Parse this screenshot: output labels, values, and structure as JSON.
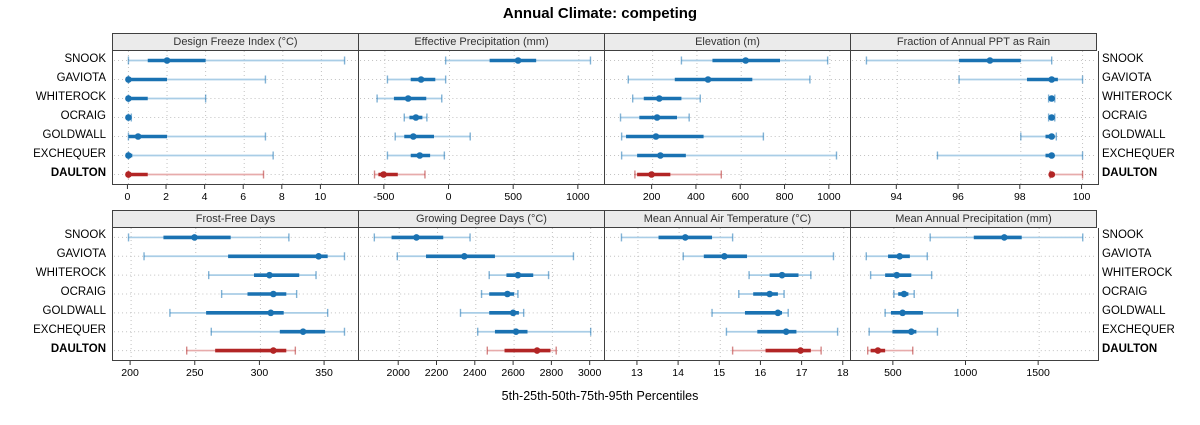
{
  "title": "Annual Climate: competing",
  "footer": "5th-25th-50th-75th-95th Percentiles",
  "stations": [
    "SNOOK",
    "GAVIOTA",
    "WHITEROCK",
    "OCRAIG",
    "GOLDWALL",
    "EXCHEQUER",
    "DAULTON"
  ],
  "highlight_station": "DAULTON",
  "percentile_labels": [
    "5th",
    "25th",
    "50th",
    "75th",
    "95th"
  ],
  "colors": {
    "blue": "#1a72b2",
    "light_blue": "#a9cde6",
    "red": "#b22525",
    "light_red": "#e7abab",
    "header_bg": "#ebebeb",
    "border": "#404040",
    "grid": "#c2c2c2"
  },
  "chart_data": [
    {
      "type": "dot-whisker",
      "title": "Design Freeze Index (°C)",
      "xlim": [
        -0.8,
        12.0
      ],
      "ticks": [
        0,
        2,
        4,
        6,
        8,
        10
      ],
      "series": [
        [
          0,
          1,
          2,
          4,
          11.2
        ],
        [
          0,
          0,
          0,
          2,
          7.1
        ],
        [
          0,
          0,
          0,
          1,
          4
        ],
        [
          0,
          0,
          0,
          0,
          0.15
        ],
        [
          0,
          0,
          0.5,
          2,
          7.1
        ],
        [
          0,
          0,
          0,
          0.2,
          7.5
        ],
        [
          0,
          0,
          0,
          1,
          7
        ]
      ]
    },
    {
      "type": "dot-whisker",
      "title": "Effective Precipitation (mm)",
      "xlim": [
        -700,
        1210
      ],
      "ticks": [
        -500,
        0,
        500,
        1000
      ],
      "series": [
        [
          -30,
          310,
          530,
          670,
          1090
        ],
        [
          -480,
          -300,
          -220,
          -110,
          -30
        ],
        [
          -560,
          -430,
          -320,
          -180,
          -60
        ],
        [
          -350,
          -310,
          -260,
          -210,
          -175
        ],
        [
          -420,
          -350,
          -280,
          -120,
          160
        ],
        [
          -480,
          -300,
          -230,
          -150,
          -40
        ],
        [
          -580,
          -550,
          -510,
          -400,
          -190
        ]
      ]
    },
    {
      "type": "dot-whisker",
      "title": "Elevation (m)",
      "xlim": [
        -15,
        1100
      ],
      "ticks": [
        200,
        400,
        600,
        800,
        1000
      ],
      "series": [
        [
          330,
          470,
          620,
          775,
          990
        ],
        [
          90,
          300,
          450,
          650,
          910
        ],
        [
          110,
          160,
          230,
          330,
          415
        ],
        [
          55,
          140,
          220,
          310,
          365
        ],
        [
          60,
          80,
          215,
          430,
          700
        ],
        [
          60,
          130,
          235,
          350,
          1030
        ],
        [
          120,
          130,
          195,
          280,
          510
        ]
      ]
    },
    {
      "type": "dot-whisker",
      "title": "Fraction of Annual PPT as Rain",
      "xlim": [
        92.5,
        100.5
      ],
      "ticks": [
        94,
        96,
        98,
        100
      ],
      "series": [
        [
          93,
          96,
          97,
          98,
          99
        ],
        [
          96,
          98.2,
          99,
          99.2,
          100
        ],
        [
          98.9,
          98.95,
          99,
          99.05,
          99.1
        ],
        [
          98.9,
          98.95,
          99,
          99.05,
          99.1
        ],
        [
          98,
          98.8,
          99,
          99.05,
          99.15
        ],
        [
          95.3,
          98.8,
          99,
          99.05,
          100
        ],
        [
          98.95,
          99,
          99,
          99.1,
          100
        ]
      ]
    },
    {
      "type": "dot-whisker",
      "title": "Frost-Free Days",
      "xlim": [
        186,
        377
      ],
      "ticks": [
        200,
        250,
        300,
        350
      ],
      "series": [
        [
          198,
          225,
          249,
          277,
          322
        ],
        [
          210,
          275,
          345,
          352,
          365
        ],
        [
          260,
          295,
          307,
          330,
          343
        ],
        [
          270,
          290,
          310,
          320,
          328
        ],
        [
          230,
          258,
          308,
          318,
          352
        ],
        [
          262,
          315,
          333,
          350,
          365
        ],
        [
          243,
          265,
          310,
          320,
          327
        ]
      ]
    },
    {
      "type": "dot-whisker",
      "title": "Growing Degree Days (°C)",
      "xlim": [
        1790,
        3080
      ],
      "ticks": [
        2000,
        2200,
        2400,
        2600,
        2800,
        3000
      ],
      "series": [
        [
          1870,
          1960,
          2090,
          2230,
          2370
        ],
        [
          1990,
          2140,
          2340,
          2500,
          2910
        ],
        [
          2470,
          2560,
          2620,
          2700,
          2780
        ],
        [
          2430,
          2470,
          2565,
          2600,
          2620
        ],
        [
          2320,
          2470,
          2595,
          2625,
          2650
        ],
        [
          2410,
          2500,
          2610,
          2670,
          3000
        ],
        [
          2460,
          2550,
          2720,
          2790,
          2820
        ]
      ]
    },
    {
      "type": "dot-whisker",
      "title": "Mean Annual Air Temperature (°C)",
      "xlim": [
        12.2,
        18.2
      ],
      "ticks": [
        13,
        14,
        15,
        16,
        17,
        18
      ],
      "series": [
        [
          12.6,
          13.5,
          14.15,
          14.8,
          15.3
        ],
        [
          14.1,
          14.6,
          15.1,
          15.65,
          17.75
        ],
        [
          15.7,
          16.2,
          16.5,
          16.9,
          17.2
        ],
        [
          15.45,
          15.8,
          16.2,
          16.4,
          16.55
        ],
        [
          14.8,
          15.6,
          16.4,
          16.5,
          16.65
        ],
        [
          15.15,
          15.9,
          16.6,
          16.85,
          17.85
        ],
        [
          15.3,
          16.1,
          16.95,
          17.2,
          17.45
        ]
      ]
    },
    {
      "type": "dot-whisker",
      "title": "Mean Annual Precipitation (mm)",
      "xlim": [
        205,
        1905
      ],
      "ticks": [
        500,
        1000,
        1500
      ],
      "series": [
        [
          750,
          1050,
          1260,
          1380,
          1800
        ],
        [
          310,
          460,
          540,
          610,
          730
        ],
        [
          340,
          440,
          520,
          620,
          760
        ],
        [
          500,
          530,
          570,
          600,
          640
        ],
        [
          440,
          480,
          560,
          700,
          940
        ],
        [
          330,
          490,
          620,
          655,
          800
        ],
        [
          320,
          340,
          390,
          440,
          630
        ]
      ]
    }
  ]
}
